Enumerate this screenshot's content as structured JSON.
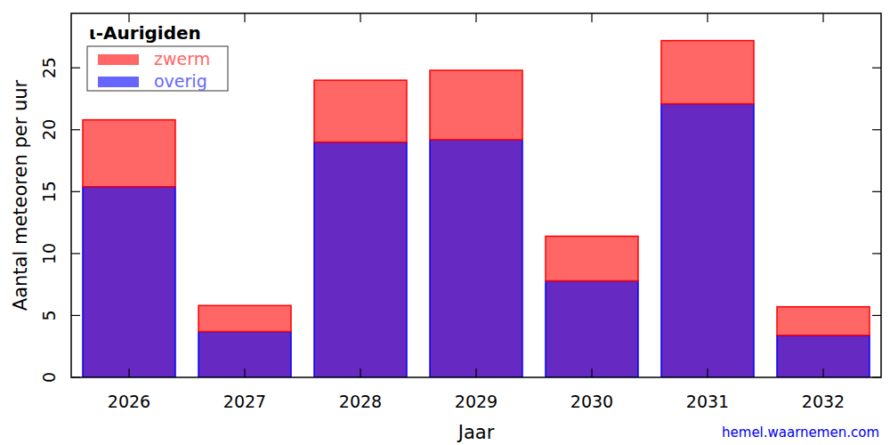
{
  "chart_data": {
    "type": "bar",
    "title": "ι-Aurigiden",
    "x_label": "Jaar",
    "y_label": "Aantal meteoren per uur",
    "credit": "hemel.waarnemen.com",
    "categories": [
      "2026",
      "2027",
      "2028",
      "2029",
      "2030",
      "2031",
      "2032"
    ],
    "series": [
      {
        "name": "overig",
        "color": "#0000ff",
        "values": [
          15.4,
          3.7,
          19.0,
          19.2,
          7.8,
          22.1,
          3.4
        ]
      },
      {
        "name": "zwerm",
        "color": "#ff0000",
        "values": [
          5.4,
          2.1,
          5.0,
          5.6,
          3.6,
          5.1,
          2.3
        ]
      }
    ],
    "stacked": true,
    "legend": "upper left",
    "ylim": [
      0,
      29.4
    ],
    "yticks": [
      0,
      5,
      10,
      15,
      20,
      25
    ],
    "grid": false
  }
}
